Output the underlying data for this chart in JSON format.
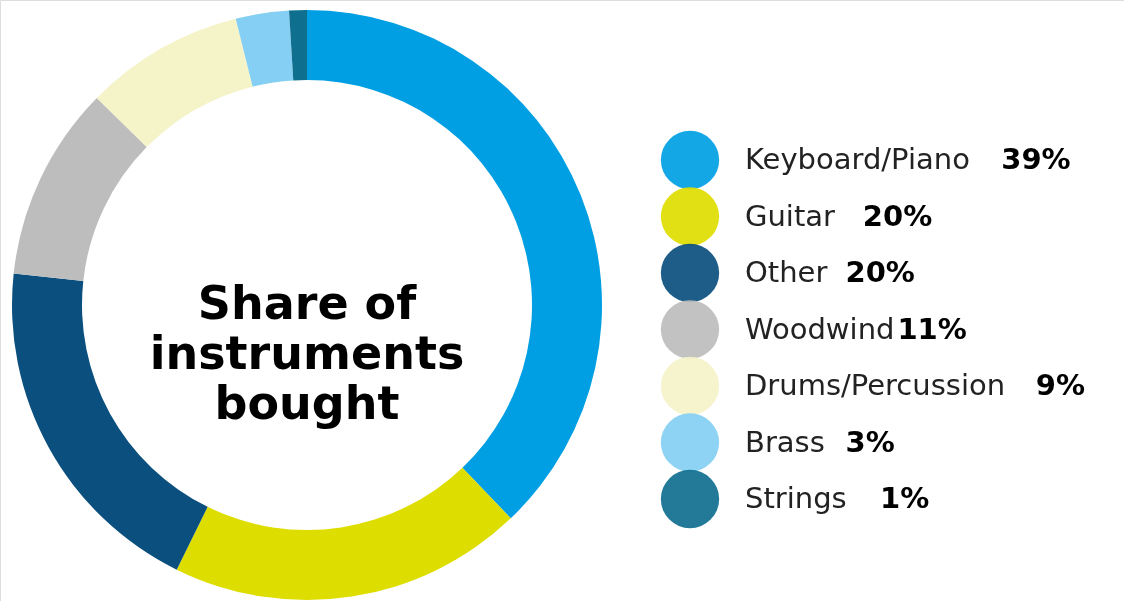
{
  "chart_data": {
    "type": "donut",
    "title": "Share of instruments bought",
    "categories": [
      "Keyboard/Piano",
      "Guitar",
      "Other",
      "Woodwind",
      "Drums/Percussion",
      "Brass",
      "Strings"
    ],
    "values": [
      39,
      20,
      20,
      11,
      9,
      3,
      1
    ],
    "value_labels": [
      "39%",
      "20%",
      "20%",
      "11%",
      "9%",
      "3%",
      "1%"
    ],
    "colors": [
      "#009fe3",
      "#dedd00",
      "#0a4f7e",
      "#bdbdbd",
      "#f5f3c8",
      "#84cff3",
      "#0f6f8f"
    ],
    "legend": "right"
  }
}
